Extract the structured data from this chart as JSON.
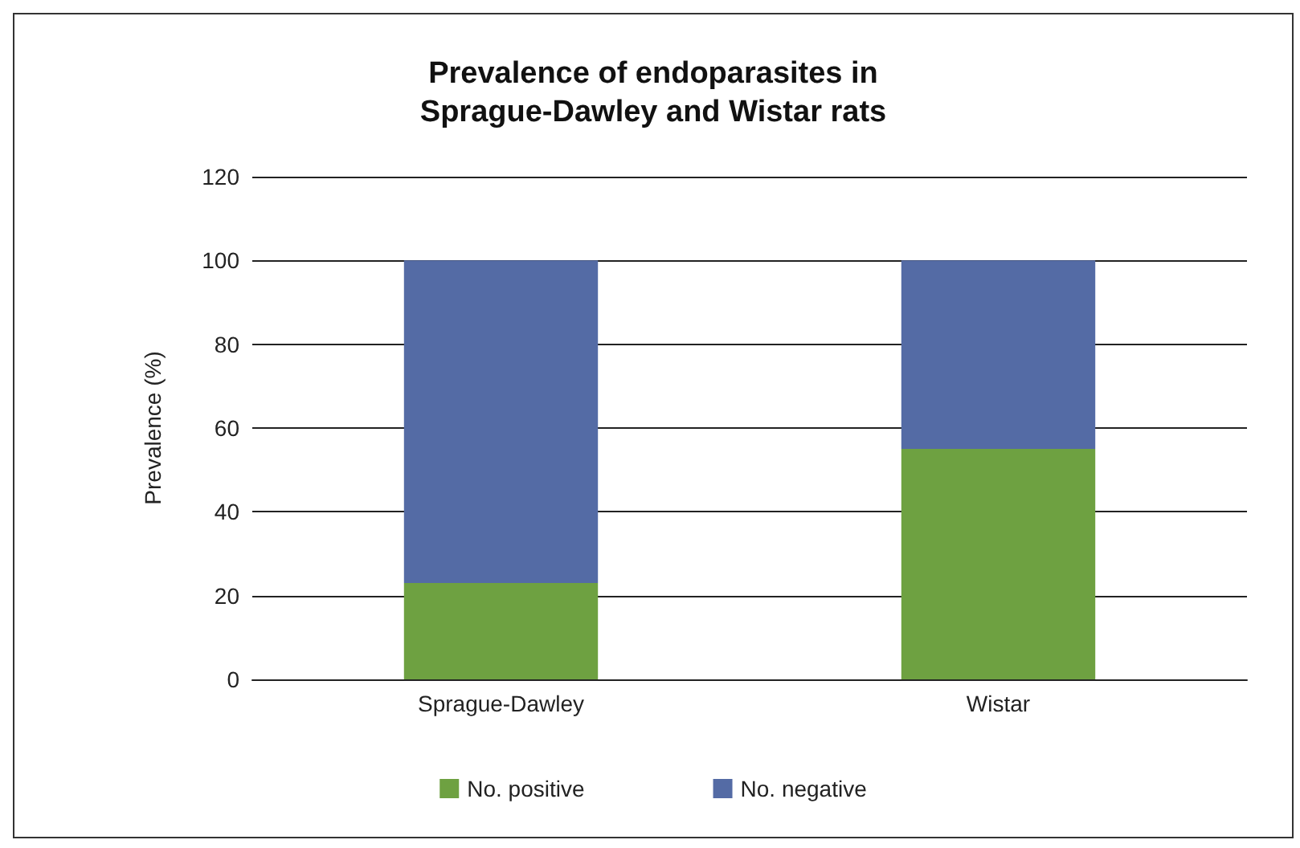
{
  "chart_data": {
    "type": "bar",
    "title": "Prevalence of endoparasites in\nSprague-Dawley and Wistar rats",
    "ylabel": "Prevalence (%)",
    "categories": [
      "Sprague-Dawley",
      "Wistar"
    ],
    "series": [
      {
        "name": "No. positive",
        "color": "#6ea141",
        "values": [
          23,
          55
        ]
      },
      {
        "name": "No. negative",
        "color": "#546ba5",
        "values": [
          77,
          45
        ]
      }
    ],
    "stacked": true,
    "ylim": [
      0,
      120
    ],
    "yticks": [
      0,
      20,
      40,
      60,
      80,
      100,
      120
    ],
    "grid": "y",
    "legend": "bottom"
  }
}
